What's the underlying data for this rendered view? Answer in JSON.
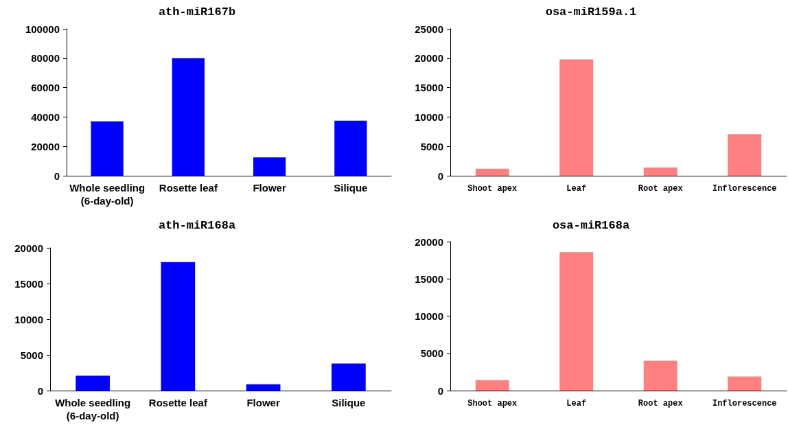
{
  "chart_data": [
    {
      "type": "bar",
      "title": "ath-miR167b",
      "categories": [
        "Whole seedling\n(6-day-old)",
        "Rosette leaf",
        "Flower",
        "Silique"
      ],
      "values": [
        37000,
        80000,
        12500,
        37500
      ],
      "color": "#0000ff",
      "ylim": [
        0,
        100000
      ],
      "yticks": [
        0,
        20000,
        40000,
        60000,
        80000,
        100000
      ],
      "grid": false
    },
    {
      "type": "bar",
      "title": "osa-miR159a.1",
      "categories": [
        "Shoot apex",
        "Leaf",
        "Root apex",
        "Inflorescence"
      ],
      "values": [
        1200,
        19800,
        1400,
        7100
      ],
      "color": "#ff8080",
      "ylim": [
        0,
        25000
      ],
      "yticks": [
        0,
        5000,
        10000,
        15000,
        20000,
        25000
      ],
      "grid": false
    },
    {
      "type": "bar",
      "title": "ath-miR168a",
      "categories": [
        "Whole seedling\n(6-day-old)",
        "Rosette leaf",
        "Flower",
        "Silique"
      ],
      "values": [
        2100,
        18000,
        900,
        3800
      ],
      "color": "#0000ff",
      "ylim": [
        0,
        20000
      ],
      "yticks": [
        0,
        5000,
        10000,
        15000,
        20000
      ],
      "grid": false
    },
    {
      "type": "bar",
      "title": "osa-miR168a",
      "categories": [
        "Shoot apex",
        "Leaf",
        "Root apex",
        "Inflorescence"
      ],
      "values": [
        1400,
        18600,
        4000,
        1900
      ],
      "color": "#ff8080",
      "ylim": [
        0,
        20000
      ],
      "yticks": [
        0,
        5000,
        10000,
        15000,
        20000
      ],
      "grid": false
    }
  ]
}
